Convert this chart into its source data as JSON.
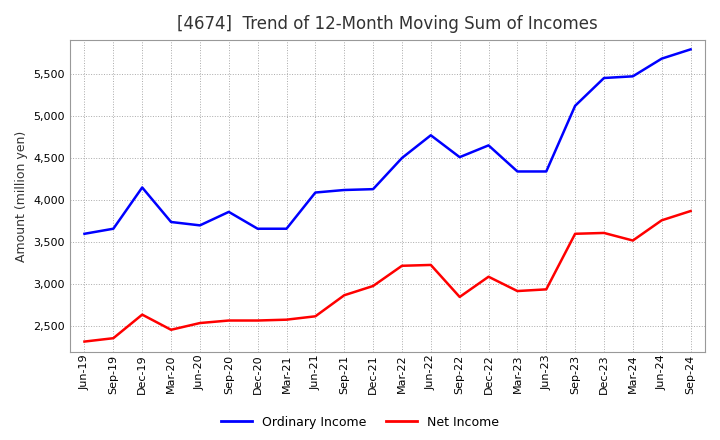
{
  "title": "[4674]  Trend of 12-Month Moving Sum of Incomes",
  "ylabel": "Amount (million yen)",
  "x_labels": [
    "Jun-19",
    "Sep-19",
    "Dec-19",
    "Mar-20",
    "Jun-20",
    "Sep-20",
    "Dec-20",
    "Mar-21",
    "Jun-21",
    "Sep-21",
    "Dec-21",
    "Mar-22",
    "Jun-22",
    "Sep-22",
    "Dec-22",
    "Mar-23",
    "Jun-23",
    "Sep-23",
    "Dec-23",
    "Mar-24",
    "Jun-24",
    "Sep-24"
  ],
  "ordinary_income": [
    3600,
    3660,
    4150,
    3740,
    3700,
    3860,
    3660,
    3660,
    4090,
    4120,
    4130,
    4500,
    4770,
    4510,
    4650,
    4340,
    4340,
    5120,
    5450,
    5470,
    5680,
    5790
  ],
  "net_income": [
    2320,
    2360,
    2640,
    2460,
    2540,
    2570,
    2570,
    2580,
    2620,
    2870,
    2980,
    3220,
    3230,
    2850,
    3090,
    2920,
    2940,
    3600,
    3610,
    3520,
    3760,
    3870
  ],
  "ordinary_color": "#0000ff",
  "net_color": "#ff0000",
  "ylim_min": 2200,
  "ylim_max": 5900,
  "yticks": [
    2500,
    3000,
    3500,
    4000,
    4500,
    5000,
    5500
  ],
  "background_color": "#ffffff",
  "grid_color": "#aaaaaa",
  "title_fontsize": 12,
  "title_color": "#333333",
  "axis_label_fontsize": 9,
  "tick_fontsize": 8,
  "legend_labels": [
    "Ordinary Income",
    "Net Income"
  ],
  "legend_fontsize": 9
}
